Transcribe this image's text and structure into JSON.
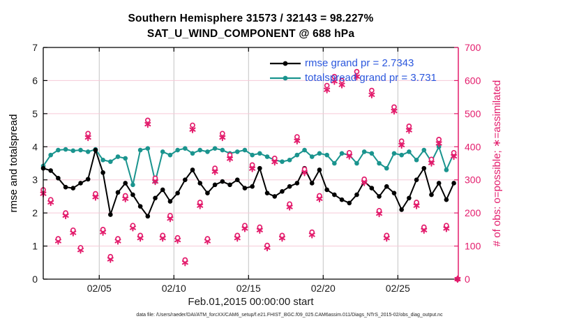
{
  "title": {
    "line1": "Southern Hemisphere 31573 / 32143 = 98.227%",
    "line2": "SAT_U_WIND_COMPONENT @ 688 hPa"
  },
  "legend": [
    {
      "label": "rmse grand pr = 2.7343",
      "color": "#000000"
    },
    {
      "label": "totalspread grand pr = 3.731",
      "color": "#1a948e"
    }
  ],
  "axes": {
    "left_label": "rmse and totalspread",
    "right_label": "# of obs: o=possible; ∗=assimilated",
    "x_label": "Feb.01,2015 00:00:00 start"
  },
  "footer": {
    "data_file": "data file: /Users/raeder/DAI/ATM_forcXX/CAM6_setup/f.e21.FHIST_BGC.f09_025.CAM6assim.011/Diags_NTrS_2015-02/obs_diag_output.nc"
  },
  "colors": {
    "rmse": "#000000",
    "totalspread": "#1a948e",
    "obs": "#e31c6c",
    "legend_text": "#2b57dd",
    "h_grid": "#f6c9d7",
    "v_grid": "#c3c3c3",
    "axis_left": "#000000",
    "axis_right": "#e31c6c"
  },
  "chart_data": {
    "type": "line",
    "title": "Southern Hemisphere 31573 / 32143 = 98.227% | SAT_U_WIND_COMPONENT @ 688 hPa",
    "xlabel": "Feb.01,2015 00:00:00 start",
    "ylabel_left": "rmse and totalspread",
    "ylabel_right": "# of obs: o=possible; *=assimilated",
    "xlim": [
      0.25,
      28.05
    ],
    "ylim_left": [
      0,
      7
    ],
    "ylim_right": [
      0,
      700
    ],
    "x_start_days": 0.25,
    "x_step_days": 0.5,
    "x_ticks": [
      {
        "t": 4,
        "label": "02/05"
      },
      {
        "t": 9,
        "label": "02/10"
      },
      {
        "t": 14,
        "label": "02/15"
      },
      {
        "t": 19,
        "label": "02/20"
      },
      {
        "t": 24,
        "label": "02/25"
      }
    ],
    "y_left_ticks": [
      0,
      1,
      2,
      3,
      4,
      5,
      6,
      7
    ],
    "y_right_ticks": [
      0,
      100,
      200,
      300,
      400,
      500,
      600,
      700
    ],
    "grid": true,
    "legend_position": "top-right-inside",
    "series": [
      {
        "name": "rmse",
        "axis": "left",
        "color": "#000000",
        "marker": "dot",
        "values": [
          3.35,
          3.28,
          3.05,
          2.78,
          2.75,
          2.9,
          3.02,
          3.9,
          3.22,
          1.95,
          2.62,
          2.9,
          2.55,
          2.2,
          1.9,
          2.45,
          2.7,
          2.35,
          2.6,
          3.0,
          3.3,
          2.9,
          2.6,
          2.85,
          2.95,
          2.85,
          3.0,
          2.75,
          2.8,
          3.35,
          2.6,
          2.5,
          2.65,
          2.8,
          2.9,
          3.35,
          2.9,
          3.3,
          2.7,
          2.55,
          2.4,
          2.3,
          2.55,
          2.95,
          2.75,
          2.5,
          2.8,
          2.6,
          2.1,
          2.45,
          3.0,
          3.35,
          2.55,
          2.9,
          2.4,
          2.9
        ]
      },
      {
        "name": "totalspread",
        "axis": "left",
        "color": "#1a948e",
        "marker": "dot",
        "values": [
          3.42,
          3.75,
          3.9,
          3.92,
          3.88,
          3.9,
          3.85,
          3.92,
          3.6,
          3.55,
          3.7,
          3.65,
          2.85,
          3.9,
          3.95,
          2.95,
          3.85,
          3.75,
          3.9,
          3.95,
          3.8,
          3.9,
          3.85,
          3.95,
          3.9,
          3.8,
          3.85,
          3.9,
          3.75,
          3.8,
          3.7,
          3.6,
          3.55,
          3.6,
          3.75,
          3.9,
          3.7,
          3.8,
          3.75,
          3.5,
          3.8,
          3.75,
          3.5,
          3.85,
          3.8,
          3.5,
          3.35,
          3.8,
          3.75,
          3.85,
          3.6,
          3.9,
          3.55,
          4.0,
          3.3,
          3.8
        ]
      },
      {
        "name": "possible",
        "axis": "right",
        "color": "#e31c6c",
        "marker": "circle",
        "values": [
          270,
          240,
          122,
          200,
          148,
          95,
          440,
          258,
          150,
          68,
          122,
          252,
          162,
          132,
          480,
          305,
          132,
          192,
          125,
          58,
          465,
          232,
          122,
          335,
          440,
          375,
          132,
          162,
          345,
          157,
          102,
          365,
          132,
          227,
          430,
          332,
          142,
          252,
          585,
          612,
          600,
          382,
          627,
          302,
          570,
          207,
          132,
          520,
          417,
          462,
          232,
          157,
          362,
          422,
          162,
          382
        ]
      },
      {
        "name": "assimilated",
        "axis": "right",
        "color": "#e31c6c",
        "marker": "asterisk",
        "values": [
          258,
          232,
          115,
          192,
          140,
          88,
          428,
          248,
          142,
          60,
          115,
          243,
          155,
          124,
          468,
          295,
          124,
          183,
          118,
          50,
          452,
          222,
          115,
          325,
          428,
          364,
          124,
          153,
          334,
          148,
          95,
          354,
          124,
          218,
          418,
          322,
          134,
          243,
          572,
          598,
          587,
          372,
          612,
          292,
          557,
          198,
          124,
          508,
          405,
          450,
          222,
          148,
          351,
          410,
          153,
          371
        ]
      }
    ],
    "final_zero_point": {
      "t": 28.0,
      "value": 0
    }
  }
}
